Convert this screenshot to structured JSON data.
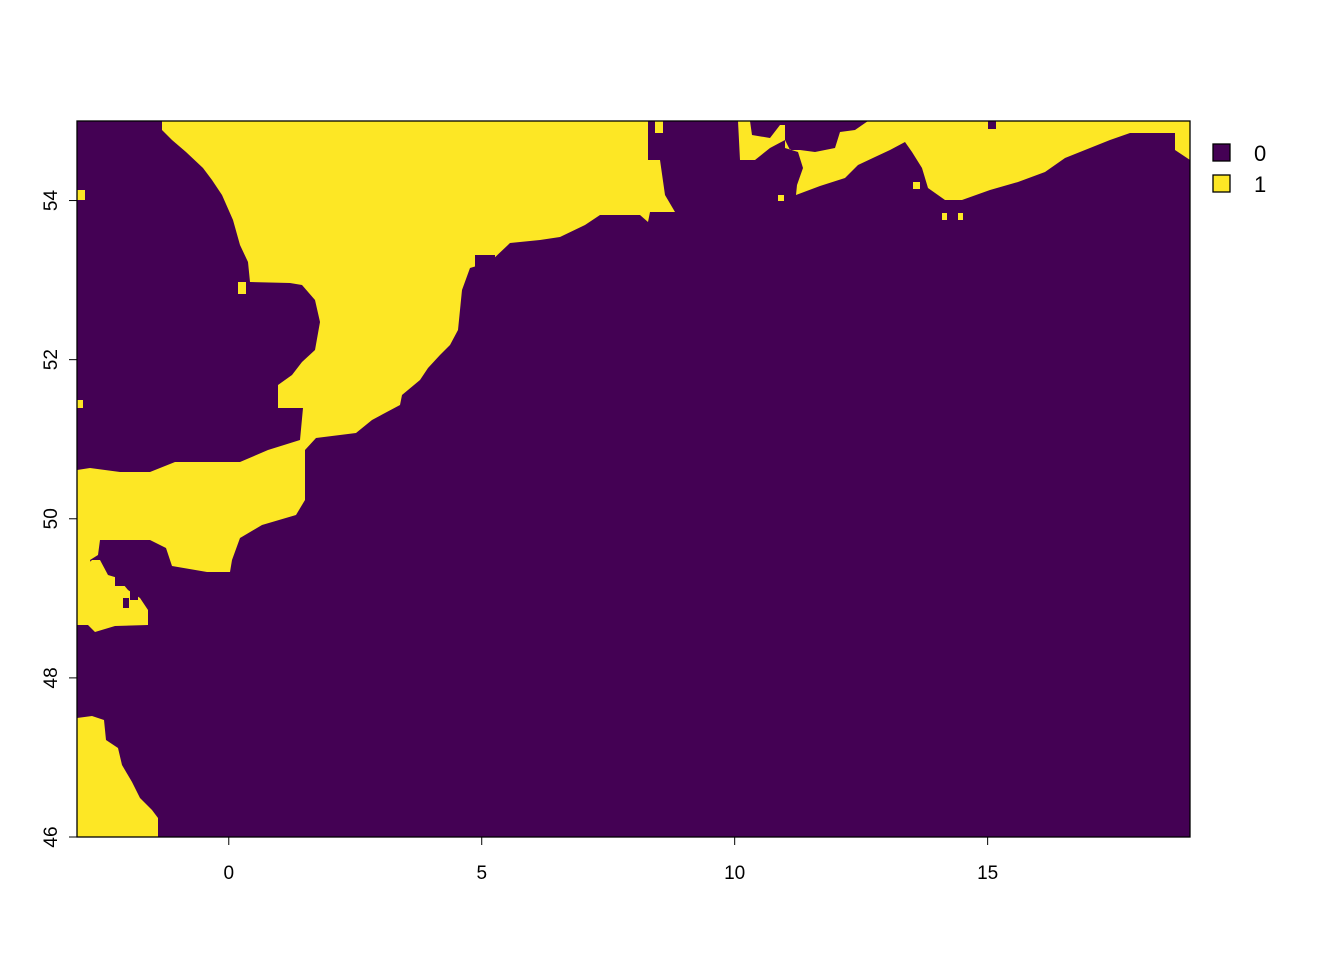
{
  "map": {
    "x_ticks": [
      0,
      5,
      10,
      15
    ],
    "y_ticks": [
      46,
      48,
      50,
      52,
      54
    ],
    "x_range": [
      -3,
      19
    ],
    "y_range": [
      46,
      55
    ],
    "colors": {
      "0": "#440154",
      "1": "#FDE725"
    },
    "legend": [
      {
        "label": "0",
        "color": "#440154"
      },
      {
        "label": "1",
        "color": "#FDE725"
      }
    ]
  }
}
